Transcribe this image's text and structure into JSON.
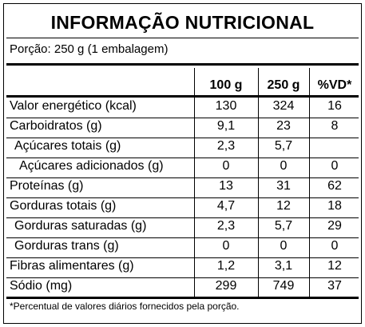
{
  "title": "INFORMAÇÃO NUTRICIONAL",
  "portion": "Porção: 250 g (1 embalagem)",
  "headers": [
    "100 g",
    "250 g",
    "%VD*"
  ],
  "rows": [
    {
      "name": "Valor energético (kcal)",
      "v100": "130",
      "v250": "324",
      "vd": "16"
    },
    {
      "name": "Carboidratos (g)",
      "v100": "9,1",
      "v250": "23",
      "vd": "8"
    },
    {
      "name": "Açúcares totais (g)",
      "v100": "2,3",
      "v250": "5,7",
      "vd": ""
    },
    {
      "name": "Açúcares adicionados (g)",
      "v100": "0",
      "v250": "0",
      "vd": "0"
    },
    {
      "name": "Proteínas (g)",
      "v100": "13",
      "v250": "31",
      "vd": "62"
    },
    {
      "name": "Gorduras totais (g)",
      "v100": "4,7",
      "v250": "12",
      "vd": "18"
    },
    {
      "name": "Gorduras saturadas (g)",
      "v100": "2,3",
      "v250": "5,7",
      "vd": "29"
    },
    {
      "name": "Gorduras trans (g)",
      "v100": "0",
      "v250": "0",
      "vd": "0"
    },
    {
      "name": "Fibras alimentares (g)",
      "v100": "1,2",
      "v250": "3,1",
      "vd": "12"
    },
    {
      "name": "Sódio (mg)",
      "v100": "299",
      "v250": "749",
      "vd": "37"
    }
  ],
  "footnote": "*Percentual de valores diários fornecidos pela porção."
}
